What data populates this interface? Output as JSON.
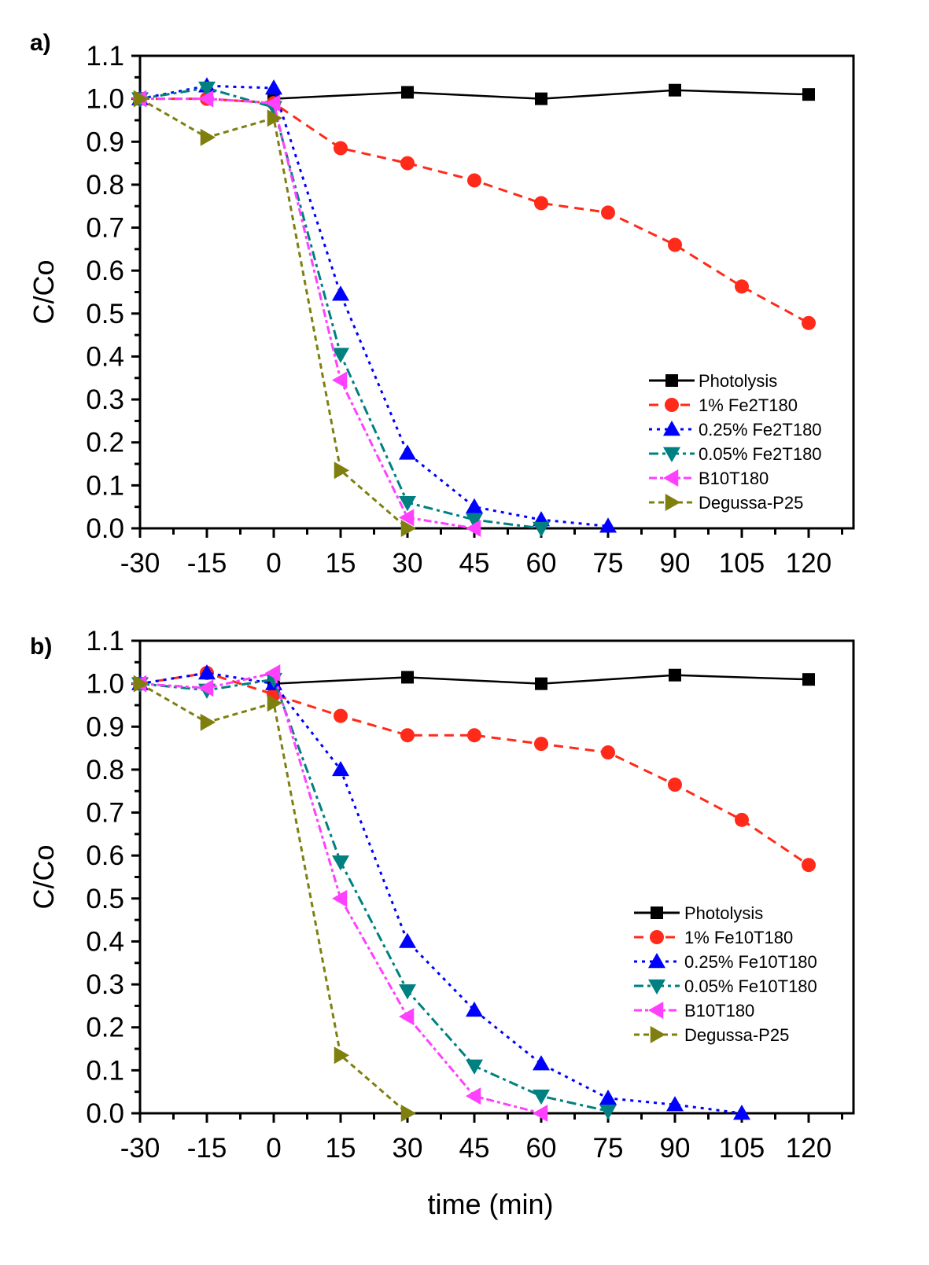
{
  "chart_data": [
    {
      "type": "line",
      "panel_label": "a)",
      "title": "",
      "xlabel": "",
      "ylabel": "C/Co",
      "xlim": [
        -30,
        130
      ],
      "ylim": [
        0,
        1.1
      ],
      "xticks": [
        -30,
        -15,
        0,
        15,
        30,
        45,
        60,
        75,
        90,
        105,
        120
      ],
      "xtick_labels": [
        "-30",
        "-15",
        "0",
        "15",
        "30",
        "45",
        "60",
        "75",
        "90",
        "105",
        "120"
      ],
      "yticks": [
        0,
        0.1,
        0.2,
        0.3,
        0.4,
        0.5,
        0.6,
        0.7,
        0.8,
        0.9,
        1.0,
        1.1
      ],
      "ytick_labels": [
        "0.0",
        "0.1",
        "0.2",
        "0.3",
        "0.4",
        "0.5",
        "0.6",
        "0.7",
        "0.8",
        "0.9",
        "1.0",
        "1.1"
      ],
      "grid": false,
      "legend_position": "bottom-right",
      "series": [
        {
          "name": "Photolysis",
          "color": "#000000",
          "marker": "square",
          "dash": "solid",
          "x": [
            0,
            30,
            60,
            90,
            120
          ],
          "y": [
            1.0,
            1.015,
            1.0,
            1.02,
            1.01
          ]
        },
        {
          "name": "1% Fe2T180",
          "color": "#ff2a1a",
          "marker": "circle",
          "dash": "dash",
          "x": [
            -30,
            -15,
            0,
            15,
            30,
            45,
            60,
            75,
            90,
            105,
            120
          ],
          "y": [
            1.0,
            1.0,
            0.99,
            0.885,
            0.85,
            0.81,
            0.757,
            0.735,
            0.66,
            0.563,
            0.478
          ]
        },
        {
          "name": "0.25% Fe2T180",
          "color": "#0000ff",
          "marker": "triangle-up",
          "dash": "dot",
          "x": [
            -30,
            -15,
            0,
            15,
            30,
            45,
            60,
            75
          ],
          "y": [
            1.0,
            1.03,
            1.025,
            0.545,
            0.175,
            0.05,
            0.02,
            0.005
          ]
        },
        {
          "name": "0.05% Fe2T180",
          "color": "#008080",
          "marker": "triangle-down",
          "dash": "dashdot",
          "x": [
            -30,
            -15,
            0,
            15,
            30,
            45,
            60
          ],
          "y": [
            1.0,
            1.025,
            0.98,
            0.405,
            0.06,
            0.02,
            0.0
          ]
        },
        {
          "name": "B10T180",
          "color": "#ff40ff",
          "marker": "triangle-left",
          "dash": "dashdotdot",
          "x": [
            -30,
            -15,
            0,
            15,
            30,
            45
          ],
          "y": [
            1.0,
            1.0,
            0.99,
            0.345,
            0.025,
            0.0
          ]
        },
        {
          "name": "Degussa-P25",
          "color": "#7f7f10",
          "marker": "triangle-right",
          "dash": "shortdash",
          "x": [
            -30,
            -15,
            0,
            15,
            30
          ],
          "y": [
            1.0,
            0.91,
            0.955,
            0.135,
            0.0
          ]
        }
      ]
    },
    {
      "type": "line",
      "panel_label": "b)",
      "title": "",
      "xlabel": "time (min)",
      "ylabel": "C/Co",
      "xlim": [
        -30,
        130
      ],
      "ylim": [
        0,
        1.1
      ],
      "xticks": [
        -30,
        -15,
        0,
        15,
        30,
        45,
        60,
        75,
        90,
        105,
        120
      ],
      "xtick_labels": [
        "-30",
        "-15",
        "0",
        "15",
        "30",
        "45",
        "60",
        "75",
        "90",
        "105",
        "120"
      ],
      "yticks": [
        0,
        0.1,
        0.2,
        0.3,
        0.4,
        0.5,
        0.6,
        0.7,
        0.8,
        0.9,
        1.0,
        1.1
      ],
      "ytick_labels": [
        "0.0",
        "0.1",
        "0.2",
        "0.3",
        "0.4",
        "0.5",
        "0.6",
        "0.7",
        "0.8",
        "0.9",
        "1.0",
        "1.1"
      ],
      "grid": false,
      "legend_position": "bottom-right",
      "series": [
        {
          "name": "Photolysis",
          "color": "#000000",
          "marker": "square",
          "dash": "solid",
          "x": [
            0,
            30,
            60,
            90,
            120
          ],
          "y": [
            1.0,
            1.015,
            1.0,
            1.02,
            1.01
          ]
        },
        {
          "name": "1% Fe10T180",
          "color": "#ff2a1a",
          "marker": "circle",
          "dash": "dash",
          "x": [
            -30,
            -15,
            0,
            15,
            30,
            45,
            60,
            75,
            90,
            105,
            120
          ],
          "y": [
            1.0,
            1.025,
            0.975,
            0.925,
            0.88,
            0.88,
            0.86,
            0.84,
            0.765,
            0.683,
            0.578
          ]
        },
        {
          "name": "0.25% Fe10T180",
          "color": "#0000ff",
          "marker": "triangle-up",
          "dash": "dot",
          "x": [
            -30,
            -15,
            0,
            15,
            30,
            45,
            60,
            75,
            90,
            105
          ],
          "y": [
            1.0,
            1.025,
            1.0,
            0.8,
            0.4,
            0.24,
            0.115,
            0.035,
            0.02,
            0.0
          ]
        },
        {
          "name": "0.05% Fe10T180",
          "color": "#008080",
          "marker": "triangle-down",
          "dash": "dashdot",
          "x": [
            -30,
            -15,
            0,
            15,
            30,
            45,
            60,
            75
          ],
          "y": [
            1.0,
            0.985,
            1.01,
            0.585,
            0.285,
            0.11,
            0.04,
            0.005
          ]
        },
        {
          "name": "B10T180",
          "color": "#ff40ff",
          "marker": "triangle-left",
          "dash": "dashdotdot",
          "x": [
            -30,
            -15,
            0,
            15,
            30,
            45,
            60
          ],
          "y": [
            1.0,
            0.99,
            1.025,
            0.5,
            0.225,
            0.04,
            0.0
          ]
        },
        {
          "name": "Degussa-P25",
          "color": "#7f7f10",
          "marker": "triangle-right",
          "dash": "shortdash",
          "x": [
            -30,
            -15,
            0,
            15,
            30
          ],
          "y": [
            1.0,
            0.91,
            0.955,
            0.135,
            0.0
          ]
        }
      ]
    }
  ]
}
